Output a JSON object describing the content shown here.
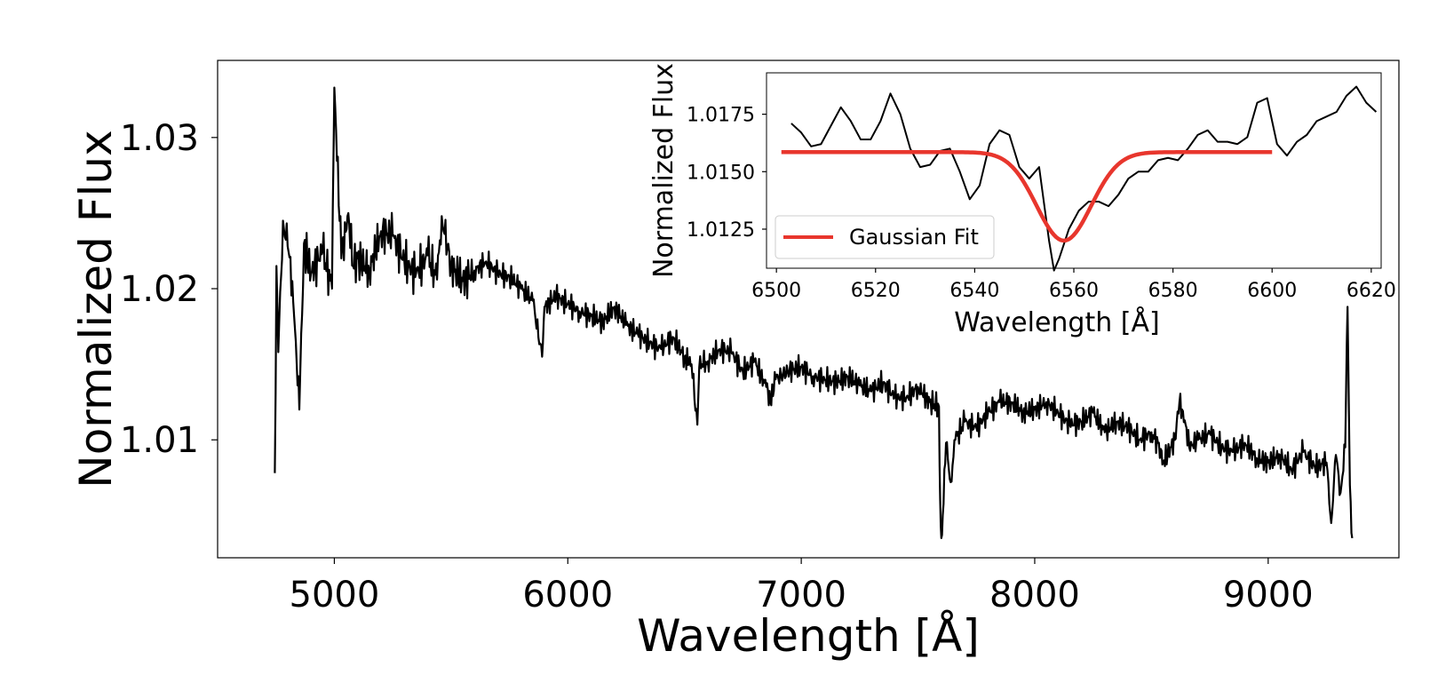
{
  "chart_data": [
    {
      "id": "main",
      "type": "line",
      "title": "",
      "xlabel": "Wavelength [Å]",
      "ylabel": "Normalized Flux",
      "xlim": [
        4500,
        9560
      ],
      "ylim": [
        1.0022,
        1.0351
      ],
      "xticks": [
        5000,
        6000,
        7000,
        8000,
        9000
      ],
      "xtick_labels": [
        "5000",
        "6000",
        "7000",
        "8000",
        "9000"
      ],
      "yticks": [
        1.01,
        1.02,
        1.03
      ],
      "ytick_labels": [
        "1.01",
        "1.02",
        "1.03"
      ],
      "grid": false,
      "series": [
        {
          "name": "spectrum",
          "color": "#000000",
          "x": [
            4745,
            4752,
            4760,
            4780,
            4800,
            4820,
            4850,
            4870,
            4900,
            4950,
            4990,
            5000,
            5030,
            5060,
            5080,
            5100,
            5150,
            5200,
            5250,
            5300,
            5350,
            5400,
            5440,
            5460,
            5500,
            5550,
            5600,
            5650,
            5700,
            5750,
            5800,
            5850,
            5890,
            5900,
            5950,
            6000,
            6050,
            6100,
            6150,
            6200,
            6250,
            6300,
            6350,
            6400,
            6450,
            6500,
            6530,
            6555,
            6563,
            6575,
            6600,
            6650,
            6700,
            6750,
            6800,
            6850,
            6868,
            6890,
            6950,
            7000,
            7050,
            7100,
            7150,
            7200,
            7250,
            7300,
            7350,
            7400,
            7450,
            7500,
            7550,
            7590,
            7595,
            7600,
            7606,
            7620,
            7640,
            7660,
            7700,
            7750,
            7800,
            7850,
            7900,
            7950,
            8000,
            8050,
            8100,
            8150,
            8200,
            8250,
            8300,
            8350,
            8400,
            8450,
            8500,
            8540,
            8550,
            8600,
            8620,
            8650,
            8662,
            8700,
            8750,
            8800,
            8850,
            8900,
            8950,
            9000,
            9050,
            9100,
            9150,
            9200,
            9250,
            9270,
            9290,
            9310,
            9330,
            9340,
            9350,
            9360
          ],
          "y": [
            1.0078,
            1.0215,
            1.0158,
            1.0245,
            1.0228,
            1.0205,
            1.012,
            1.023,
            1.021,
            1.0225,
            1.02,
            1.0333,
            1.022,
            1.025,
            1.0215,
            1.022,
            1.0212,
            1.0238,
            1.0235,
            1.0218,
            1.021,
            1.0222,
            1.0206,
            1.0248,
            1.0215,
            1.0205,
            1.0212,
            1.0218,
            1.021,
            1.0208,
            1.02,
            1.0192,
            1.0155,
            1.0188,
            1.0195,
            1.019,
            1.0185,
            1.0182,
            1.0178,
            1.0188,
            1.0176,
            1.017,
            1.0164,
            1.016,
            1.0168,
            1.0155,
            1.015,
            1.011,
            1.0148,
            1.015,
            1.0152,
            1.016,
            1.0158,
            1.0145,
            1.0152,
            1.0135,
            1.0125,
            1.014,
            1.0146,
            1.0148,
            1.0142,
            1.014,
            1.0138,
            1.0142,
            1.0136,
            1.0132,
            1.0138,
            1.0128,
            1.0128,
            1.0135,
            1.0125,
            1.0122,
            1.006,
            1.0035,
            1.005,
            1.0098,
            1.0072,
            1.01,
            1.0112,
            1.0108,
            1.0118,
            1.0125,
            1.0125,
            1.0118,
            1.012,
            1.0125,
            1.0118,
            1.011,
            1.0112,
            1.0118,
            1.0105,
            1.0112,
            1.0108,
            1.01,
            1.0105,
            1.0094,
            1.0085,
            1.01,
            1.0125,
            1.0108,
            1.0095,
            1.01,
            1.0104,
            1.0095,
            1.0092,
            1.0098,
            1.0088,
            1.0085,
            1.009,
            1.008,
            1.0092,
            1.0082,
            1.0085,
            1.0045,
            1.009,
            1.0065,
            1.0095,
            1.0188,
            1.007,
            1.0035
          ]
        }
      ]
    },
    {
      "id": "inset",
      "type": "line",
      "title": "",
      "xlabel": "Wavelength [Å]",
      "ylabel": "Normalized Flux",
      "xlim": [
        6498,
        6622
      ],
      "ylim": [
        1.0108,
        1.0193
      ],
      "xticks": [
        6500,
        6520,
        6540,
        6560,
        6580,
        6600,
        6620
      ],
      "xtick_labels": [
        "6500",
        "6520",
        "6540",
        "6560",
        "6580",
        "6600",
        "6620"
      ],
      "yticks": [
        1.0125,
        1.015,
        1.0175
      ],
      "ytick_labels": [
        "1.0125",
        "1.0150",
        "1.0175"
      ],
      "grid": false,
      "legend": {
        "position": "lower-left",
        "entries": [
          "Gaussian Fit"
        ]
      },
      "series": [
        {
          "name": "spectrum",
          "color": "#000000",
          "x": [
            6503,
            6505,
            6507,
            6509,
            6511,
            6513,
            6515,
            6517,
            6519,
            6521,
            6523,
            6525,
            6527,
            6529,
            6531,
            6533,
            6535,
            6537,
            6539,
            6541,
            6543,
            6545,
            6547,
            6549,
            6551,
            6553,
            6555,
            6556,
            6557,
            6559,
            6561,
            6563,
            6565,
            6567,
            6569,
            6571,
            6573,
            6575,
            6577,
            6579,
            6581,
            6583,
            6585,
            6587,
            6589,
            6591,
            6593,
            6595,
            6597,
            6599,
            6601,
            6603,
            6605,
            6607,
            6609,
            6611,
            6613,
            6615,
            6617,
            6619,
            6621
          ],
          "y": [
            1.0171,
            1.0167,
            1.0161,
            1.0162,
            1.017,
            1.0178,
            1.0172,
            1.0164,
            1.0164,
            1.0172,
            1.0184,
            1.0175,
            1.016,
            1.0152,
            1.0153,
            1.0159,
            1.016,
            1.015,
            1.0138,
            1.0144,
            1.0162,
            1.0168,
            1.0166,
            1.0152,
            1.0147,
            1.0152,
            1.012,
            1.0107,
            1.0112,
            1.0125,
            1.0133,
            1.0137,
            1.0137,
            1.0135,
            1.014,
            1.0147,
            1.015,
            1.015,
            1.0155,
            1.0156,
            1.0155,
            1.016,
            1.0166,
            1.0168,
            1.0163,
            1.0163,
            1.0162,
            1.0165,
            1.018,
            1.0182,
            1.0162,
            1.0157,
            1.0163,
            1.0166,
            1.0172,
            1.0174,
            1.0176,
            1.0183,
            1.0187,
            1.018,
            1.0176
          ]
        },
        {
          "name": "Gaussian Fit",
          "color": "#e8362d",
          "kind": "gaussian",
          "baseline": 1.01585,
          "depth": 0.00385,
          "center": 6558,
          "sigma": 5.5,
          "x_range": [
            6501,
            6600
          ]
        }
      ]
    }
  ]
}
